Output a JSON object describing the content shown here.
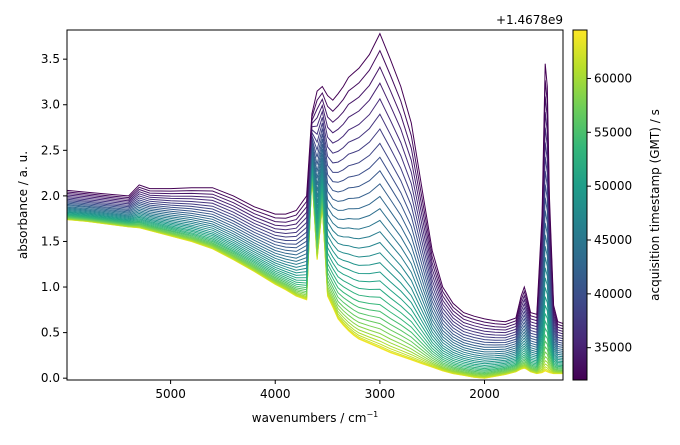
{
  "chart_data": {
    "type": "line",
    "title": "",
    "xlabel": "wavenumbers / cm",
    "xlabel_superscript": "−1",
    "ylabel": "absorbance / a. u.",
    "xlim": [
      5990,
      1250
    ],
    "ylim": [
      -0.02,
      3.82
    ],
    "x_inverted": true,
    "grid": false,
    "x_ticks": [
      5000,
      4000,
      3000,
      2000
    ],
    "x_tick_labels": [
      "5000",
      "4000",
      "3000",
      "2000"
    ],
    "y_ticks": [
      0.0,
      0.5,
      1.0,
      1.5,
      2.0,
      2.5,
      3.0,
      3.5
    ],
    "y_tick_labels": [
      "0.0",
      "0.5",
      "1.0",
      "1.5",
      "2.0",
      "2.5",
      "3.0",
      "3.5"
    ],
    "series_count": 34,
    "series_description_note": "",
    "x": [
      5990,
      5800,
      5600,
      5400,
      5300,
      5200,
      5000,
      4800,
      4600,
      4400,
      4200,
      4000,
      3900,
      3800,
      3700,
      3650,
      3600,
      3550,
      3500,
      3450,
      3400,
      3350,
      3300,
      3250,
      3200,
      3100,
      3000,
      2900,
      2800,
      2700,
      2600,
      2500,
      2400,
      2300,
      2200,
      2100,
      2000,
      1900,
      1800,
      1700,
      1650,
      1620,
      1600,
      1560,
      1500,
      1450,
      1420,
      1400,
      1380,
      1340,
      1300,
      1250
    ],
    "series_first": [
      2.06,
      2.04,
      2.02,
      2.0,
      2.12,
      2.08,
      2.08,
      2.09,
      2.09,
      2.0,
      1.88,
      1.8,
      1.8,
      1.84,
      2.0,
      2.9,
      3.15,
      3.2,
      3.1,
      3.05,
      3.12,
      3.2,
      3.3,
      3.35,
      3.4,
      3.55,
      3.78,
      3.5,
      3.2,
      2.8,
      2.1,
      1.4,
      1.0,
      0.82,
      0.72,
      0.68,
      0.65,
      0.63,
      0.62,
      0.66,
      0.9,
      1.0,
      0.92,
      0.72,
      0.7,
      1.8,
      3.45,
      3.2,
      2.0,
      0.8,
      0.62,
      0.6
    ],
    "series_last": [
      1.74,
      1.72,
      1.69,
      1.66,
      1.65,
      1.62,
      1.56,
      1.5,
      1.42,
      1.3,
      1.17,
      1.03,
      0.97,
      0.9,
      0.86,
      2.22,
      1.3,
      1.88,
      0.9,
      0.78,
      0.65,
      0.58,
      0.52,
      0.47,
      0.43,
      0.38,
      0.33,
      0.28,
      0.24,
      0.2,
      0.16,
      0.12,
      0.08,
      0.05,
      0.03,
      0.01,
      0.0,
      0.02,
      0.04,
      0.07,
      0.1,
      0.11,
      0.1,
      0.07,
      0.05,
      0.06,
      0.08,
      0.07,
      0.06,
      0.05,
      0.05,
      0.05
    ],
    "colorbar": {
      "label": "acquisition timestamp (GMT) / s",
      "offset_text": "+1.4678e9",
      "range": [
        32000,
        64500
      ],
      "ticks": [
        35000,
        40000,
        45000,
        50000,
        55000,
        60000
      ],
      "tick_labels": [
        "35000",
        "40000",
        "45000",
        "50000",
        "55000",
        "60000"
      ],
      "colormap": "viridis",
      "colormap_stops": [
        "#440154",
        "#482878",
        "#3e4989",
        "#31688e",
        "#26828e",
        "#1f9e89",
        "#35b779",
        "#6ece58",
        "#b5de2b",
        "#fde725"
      ]
    }
  }
}
